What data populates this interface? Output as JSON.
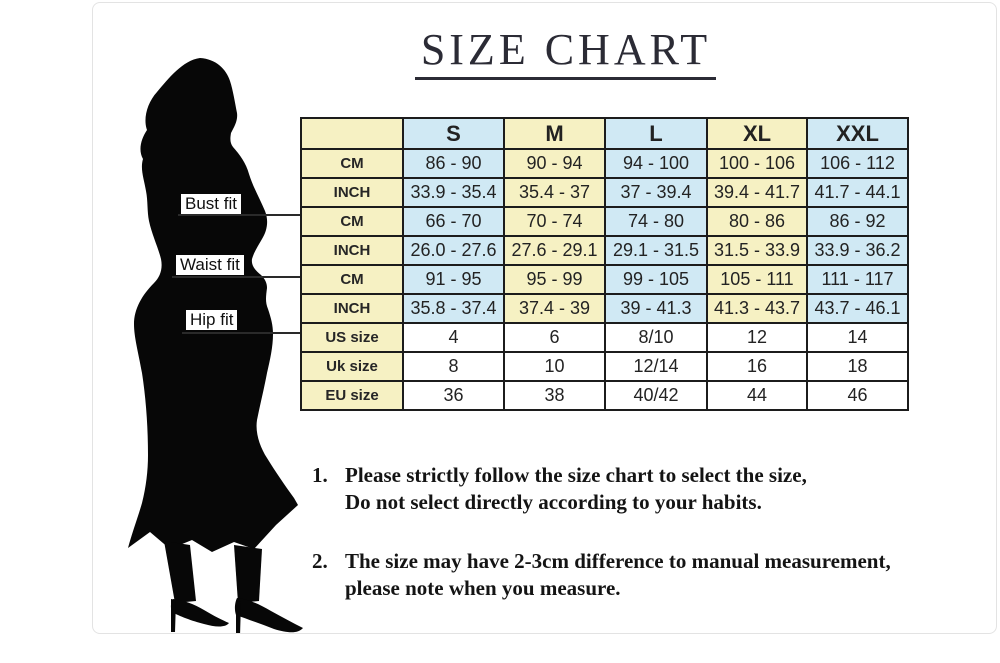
{
  "title": {
    "text": "SIZE CHART"
  },
  "figure": {
    "name": "woman-silhouette"
  },
  "fit_labels": [
    {
      "text": "Bust fit"
    },
    {
      "text": "Waist fit"
    },
    {
      "text": "Hip fit"
    }
  ],
  "table": {
    "header": [
      "",
      "S",
      "M",
      "L",
      "XL",
      "XXL"
    ],
    "measure_row_count": 6,
    "rows": [
      {
        "label": "CM",
        "values": [
          "86 - 90",
          "90 - 94",
          "94 - 100",
          "100 - 106",
          "106 - 112"
        ]
      },
      {
        "label": "INCH",
        "values": [
          "33.9 - 35.4",
          "35.4 - 37",
          "37 - 39.4",
          "39.4 - 41.7",
          "41.7 - 44.1"
        ]
      },
      {
        "label": "CM",
        "values": [
          "66 - 70",
          "70 - 74",
          "74 - 80",
          "80 - 86",
          "86 - 92"
        ]
      },
      {
        "label": "INCH",
        "values": [
          "26.0 - 27.6",
          "27.6 - 29.1",
          "29.1 - 31.5",
          "31.5 - 33.9",
          "33.9 - 36.2"
        ]
      },
      {
        "label": "CM",
        "values": [
          "91 - 95",
          "95 - 99",
          "99 - 105",
          "105 - 111",
          "111 - 117"
        ]
      },
      {
        "label": "INCH",
        "values": [
          "35.8 - 37.4",
          "37.4 - 39",
          "39 - 41.3",
          "41.3 - 43.7",
          "43.7 - 46.1"
        ]
      },
      {
        "label": "US size",
        "values": [
          "4",
          "6",
          "8/10",
          "12",
          "14"
        ]
      },
      {
        "label": "Uk size",
        "values": [
          "8",
          "10",
          "12/14",
          "16",
          "18"
        ]
      },
      {
        "label": "EU size",
        "values": [
          "36",
          "38",
          "40/42",
          "44",
          "46"
        ]
      }
    ]
  },
  "notes": [
    {
      "number": "1.",
      "line1": "Please strictly follow the size chart to select the size,",
      "line2": "Do not select directly according to your habits."
    },
    {
      "number": "2.",
      "line1": "The size may have 2-3cm difference  to manual measurement,",
      "line2": "please note when you measure."
    }
  ],
  "colors": {
    "cell_yellow": "#f6f1c3",
    "cell_blue": "#d0e9f4",
    "cell_white": "#ffffff",
    "grid_line": "#1c1c1c",
    "title_text": "#2b2b35",
    "silhouette": "#070707"
  }
}
